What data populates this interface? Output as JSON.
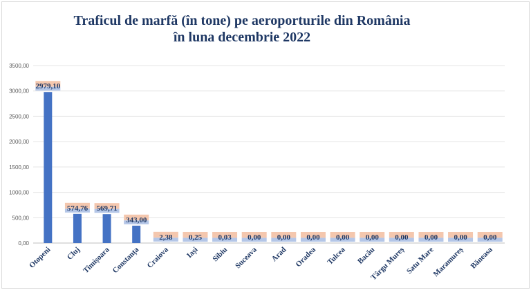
{
  "chart_data": {
    "type": "bar",
    "title_line1": "Traficul de marfă (în tone) pe aeroporturile din România",
    "title_line2": "în luna decembrie 2022",
    "xlabel": "",
    "ylabel": "",
    "ylim": [
      0,
      3500
    ],
    "yticks": [
      "0,00",
      "500,00",
      "1000,00",
      "1500,00",
      "2000,00",
      "2500,00",
      "3000,00",
      "3500,00"
    ],
    "grid": true,
    "categories": [
      "Otopeni",
      "Cluj",
      "Timișoara",
      "Constanța",
      "Craiova",
      "Iași",
      "Sibiu",
      "Suceava",
      "Arad",
      "Oradea",
      "Tulcea",
      "Bacău",
      "Târgu Mureș",
      "Satu Mare",
      "Maramureș",
      "Băneasa"
    ],
    "values": [
      2979.1,
      574.76,
      569.71,
      343.0,
      2.38,
      0.25,
      0.03,
      0,
      0,
      0,
      0,
      0,
      0,
      0,
      0,
      0
    ],
    "data_labels": [
      "2979,10",
      "574,76",
      "569,71",
      "343,00",
      "2,38",
      "0,25",
      "0,03",
      "0,00",
      "0,00",
      "0,00",
      "0,00",
      "0,00",
      "0,00",
      "0,00",
      "0,00",
      "0,00"
    ],
    "bar_color": "#4472c4",
    "label_bg_color": "#f4c7ae",
    "label_bg_bottom_color": "#b4c6e7"
  }
}
